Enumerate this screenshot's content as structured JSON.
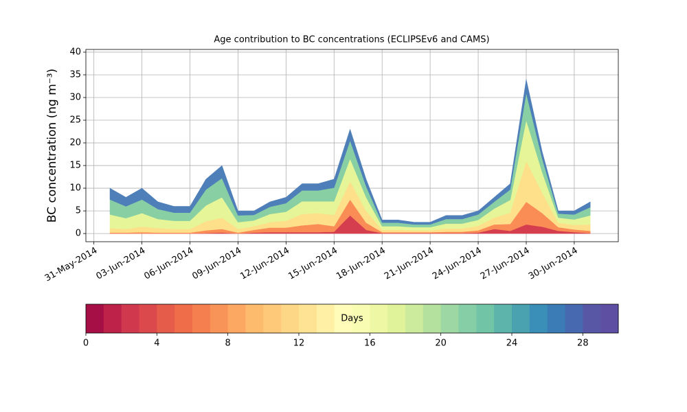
{
  "chart_data": {
    "type": "stackedarea",
    "title": "Age contribution to BC concentrations (ECLIPSEv6 and CAMS)",
    "y_label": "BC concentration (ng m⁻³)",
    "x": [
      "2014-06-01",
      "2014-06-02",
      "2014-06-03",
      "2014-06-04",
      "2014-06-05",
      "2014-06-06",
      "2014-06-07",
      "2014-06-08",
      "2014-06-09",
      "2014-06-10",
      "2014-06-11",
      "2014-06-12",
      "2014-06-13",
      "2014-06-14",
      "2014-06-15",
      "2014-06-16",
      "2014-06-17",
      "2014-06-18",
      "2014-06-19",
      "2014-06-20",
      "2014-06-21",
      "2014-06-22",
      "2014-06-23",
      "2014-06-24",
      "2014-06-25",
      "2014-06-26",
      "2014-06-27",
      "2014-06-28",
      "2014-06-29",
      "2014-06-30",
      "2014-07-01"
    ],
    "series": [
      {
        "color": "#d53e4f",
        "values": [
          0,
          0,
          0,
          0,
          0,
          0,
          0.1,
          0.2,
          0,
          0.2,
          0.3,
          0.3,
          0.3,
          0.3,
          0.4,
          4,
          0.8,
          0.1,
          0.1,
          0.1,
          0.1,
          0.1,
          0.1,
          0.2,
          1,
          0.6,
          2,
          1.5,
          0.6,
          0.3,
          0.1
        ]
      },
      {
        "color": "#fa8c55",
        "values": [
          0.2,
          0.2,
          0.3,
          0.2,
          0.2,
          0.2,
          0.6,
          0.8,
          0.2,
          0.6,
          1,
          1,
          1.5,
          1.8,
          1.2,
          3.5,
          1.6,
          0.2,
          0.2,
          0.2,
          0.2,
          0.3,
          0.3,
          0.5,
          1,
          1.5,
          5,
          3,
          0.8,
          0.6,
          0.5
        ]
      },
      {
        "color": "#fee08b",
        "values": [
          1,
          0.8,
          1.2,
          1,
          0.8,
          0.8,
          2,
          2.5,
          0.8,
          0.8,
          1.2,
          1.5,
          2.5,
          2.4,
          2.5,
          4,
          2.6,
          0.5,
          0.5,
          0.4,
          0.4,
          0.7,
          0.7,
          1,
          1.5,
          2.5,
          9,
          4.5,
          1,
          1,
          1.4
        ]
      },
      {
        "color": "#e6f598",
        "values": [
          3,
          2.4,
          3,
          2,
          1.8,
          1.8,
          3.5,
          4.5,
          1.5,
          1.3,
          1.8,
          2,
          2.8,
          2.6,
          3,
          5,
          3,
          0.8,
          0.8,
          0.7,
          0.7,
          1.1,
          1.1,
          1.3,
          2,
          2.8,
          9,
          4.5,
          1.1,
          1.2,
          2
        ]
      },
      {
        "color": "#88d0a4",
        "values": [
          3.3,
          2.6,
          3,
          2.2,
          1.8,
          1.8,
          3.5,
          4.2,
          1.5,
          1.2,
          1.6,
          1.9,
          2.4,
          2.4,
          3,
          4,
          2.4,
          0.8,
          0.8,
          0.6,
          0.6,
          1,
          1,
          1.2,
          1.5,
          2.3,
          6,
          3,
          0.9,
          1.1,
          1.8
        ]
      },
      {
        "color": "#4f7fb8",
        "values": [
          2.5,
          2,
          2.5,
          1.6,
          1.4,
          1.4,
          2.3,
          2.8,
          1,
          0.9,
          1.1,
          1.3,
          1.5,
          1.5,
          1.9,
          2.5,
          1.6,
          0.6,
          0.6,
          0.5,
          0.5,
          0.8,
          0.8,
          0.8,
          1,
          1.3,
          3,
          1.5,
          0.6,
          0.8,
          1.2
        ]
      }
    ],
    "xlim": [
      "2014-05-30T12:00",
      "2014-07-02T18:00"
    ],
    "xticks": [
      {
        "value": "2014-05-31",
        "label": "31-May-2014"
      },
      {
        "value": "2014-06-03",
        "label": "03-Jun-2014"
      },
      {
        "value": "2014-06-06",
        "label": "06-Jun-2014"
      },
      {
        "value": "2014-06-09",
        "label": "09-Jun-2014"
      },
      {
        "value": "2014-06-12",
        "label": "12-Jun-2014"
      },
      {
        "value": "2014-06-15",
        "label": "15-Jun-2014"
      },
      {
        "value": "2014-06-18",
        "label": "18-Jun-2014"
      },
      {
        "value": "2014-06-21",
        "label": "21-Jun-2014"
      },
      {
        "value": "2014-06-24",
        "label": "24-Jun-2014"
      },
      {
        "value": "2014-06-27",
        "label": "27-Jun-2014"
      },
      {
        "value": "2014-06-30",
        "label": "30-Jun-2014"
      }
    ],
    "ylim": [
      -1.8,
      40.6
    ],
    "yticks": [
      0,
      5,
      10,
      15,
      20,
      25,
      30,
      35,
      40
    ],
    "grid": true,
    "colorbar": {
      "label": "Days",
      "lim": [
        0,
        30
      ],
      "ticks": [
        0,
        4,
        8,
        12,
        16,
        20,
        24,
        28
      ],
      "colors": [
        "#a50f45",
        "#be2248",
        "#d0384d",
        "#dc494c",
        "#e65c4b",
        "#f06d4a",
        "#f67f50",
        "#f99458",
        "#fca863",
        "#fdbb6d",
        "#fec979",
        "#fed786",
        "#fee394",
        "#fff0a6",
        "#fffbb8",
        "#f7fcb2",
        "#eef8a4",
        "#e0f29a",
        "#cceb9c",
        "#b5e19f",
        "#9cd7a4",
        "#86cea5",
        "#72c4a6",
        "#5db4aa",
        "#4aa2b1",
        "#3a8fb9",
        "#3b7cb7",
        "#4769b0",
        "#5757a5",
        "#5e4fa2"
      ]
    }
  }
}
